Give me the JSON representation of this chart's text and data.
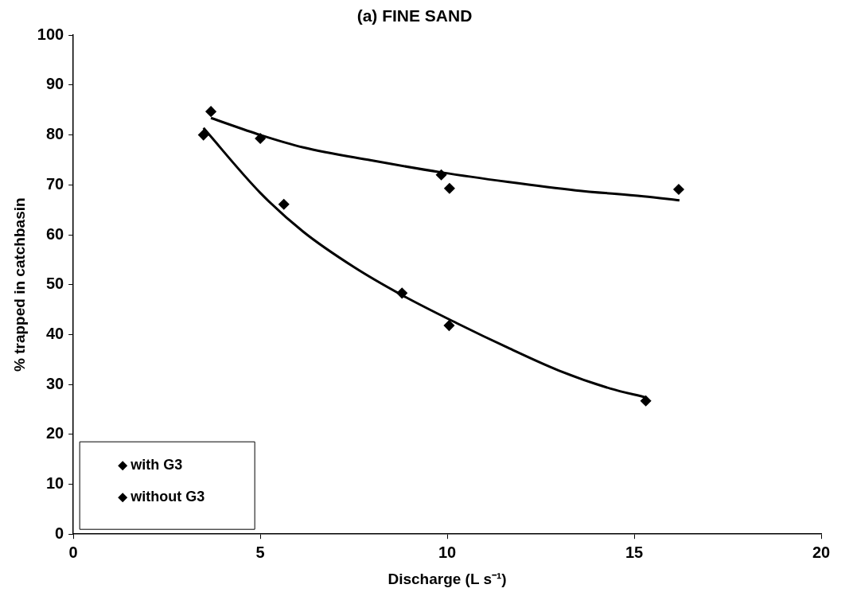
{
  "chart_data": {
    "type": "scatter",
    "title": "(a) FINE SAND",
    "xlabel": "Discharge (L s⁻¹)",
    "ylabel": "% trapped in catchbasin",
    "xlim": [
      0,
      20
    ],
    "xticks": [
      0,
      5,
      10,
      15,
      20
    ],
    "ylim": [
      0,
      100
    ],
    "yticks": [
      0,
      10,
      20,
      30,
      40,
      50,
      60,
      70,
      80,
      90,
      100
    ],
    "grid": false,
    "legend": "bottom left",
    "marker": "diamond",
    "series": [
      {
        "name": "with G3",
        "color": "#000000",
        "x": [
          3.48,
          5.63,
          8.79,
          10.05,
          15.31
        ],
        "values": [
          80,
          66.1,
          48.3,
          41.8,
          26.7
        ]
      },
      {
        "name": "without G3",
        "color": "#000000",
        "x": [
          3.68,
          5,
          9.84,
          10.06,
          16.19
        ],
        "values": [
          84.7,
          79.3,
          72,
          69.3,
          69.1
        ]
      },
      {
        "type": "line",
        "color": "#000000",
        "marker": "none",
        "x": [
          3.48,
          5,
          6.15,
          7.51,
          8.79,
          10.25,
          11.61,
          12.98,
          14.35,
          15.31
        ],
        "values": [
          81.4,
          68.4,
          60.6,
          53.5,
          47.9,
          42.3,
          37.4,
          32.8,
          29.2,
          27.4
        ]
      },
      {
        "type": "line",
        "color": "#000000",
        "marker": "none",
        "x": [
          3.68,
          5,
          6.15,
          7.97,
          9.84,
          11.61,
          13.43,
          15.25,
          16.21
        ],
        "values": [
          83.4,
          80,
          77.5,
          74.9,
          72.5,
          70.6,
          68.9,
          67.7,
          66.9
        ]
      }
    ]
  }
}
